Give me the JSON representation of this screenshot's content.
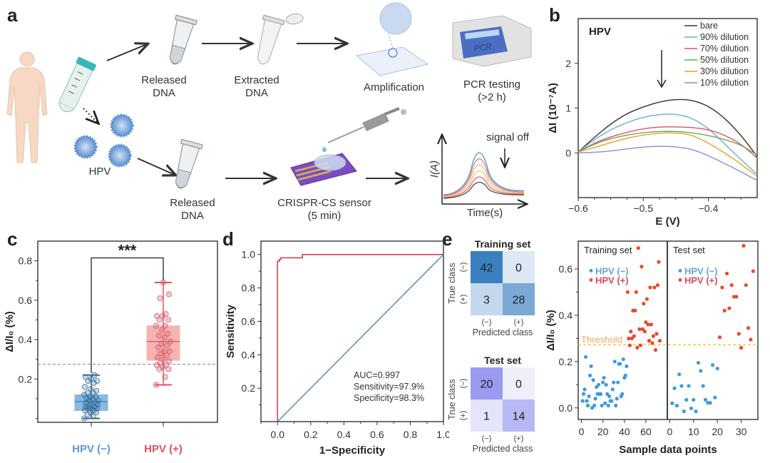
{
  "panels": {
    "a": "a",
    "b": "b",
    "c": "c",
    "d": "d",
    "e": "e"
  },
  "panel_a": {
    "top_path": [
      "Released DNA",
      "Extracted DNA",
      "Amplification",
      "PCR testing (>2 h)"
    ],
    "labels": {
      "released_dna_top_1": "Released",
      "released_dna_top_2": "DNA",
      "extracted_1": "Extracted",
      "extracted_2": "DNA",
      "amplification": "Amplification",
      "pcr_1": "PCR testing",
      "pcr_2": "(>2 h)",
      "pcr_screen": "PCR",
      "hpv": "HPV",
      "released_dna_bot_1": "Released",
      "released_dna_bot_2": "DNA",
      "sensor_1": "CRISPR-CS sensor",
      "sensor_2": "(5 min)",
      "signal_off": "signal off",
      "ia_axis": "I(A)",
      "time_axis": "Time(s)"
    }
  },
  "chart_data": [
    {
      "id": "b",
      "type": "line",
      "title": "HPV",
      "xlabel": "E (V)",
      "ylabel": "ΔI (10⁻⁷A)",
      "xlim": [
        -0.6,
        -0.325
      ],
      "ylim": [
        -1.0,
        3.0
      ],
      "xticks": [
        -0.6,
        -0.5,
        -0.4
      ],
      "xtick_labels": [
        "-0.6",
        "-0.5",
        "-0.4"
      ],
      "yticks": [
        0,
        1,
        2
      ],
      "ytick_labels": [
        "0",
        "1",
        "2"
      ],
      "legend_position": "top-right",
      "x": [
        -0.6,
        -0.575,
        -0.55,
        -0.525,
        -0.5,
        -0.475,
        -0.45,
        -0.425,
        -0.4,
        -0.375,
        -0.35,
        -0.325
      ],
      "series": [
        {
          "name": "bare",
          "color": "#333333",
          "values": [
            0.02,
            0.35,
            0.65,
            0.88,
            1.03,
            1.14,
            1.2,
            1.18,
            1.05,
            0.78,
            0.4,
            -0.08
          ]
        },
        {
          "name": "90% dilution",
          "color": "#6aaedb",
          "values": [
            0.02,
            0.3,
            0.52,
            0.68,
            0.8,
            0.86,
            0.87,
            0.78,
            0.55,
            0.2,
            -0.15,
            -0.48
          ]
        },
        {
          "name": "70% dilution",
          "color": "#e05060",
          "values": [
            0.02,
            0.22,
            0.36,
            0.46,
            0.54,
            0.58,
            0.58,
            0.57,
            0.52,
            0.4,
            0.2,
            -0.12
          ]
        },
        {
          "name": "50% dilution",
          "color": "#6aa84f",
          "values": [
            0.02,
            0.2,
            0.32,
            0.4,
            0.45,
            0.48,
            0.48,
            0.45,
            0.39,
            0.3,
            0.18,
            -0.05
          ]
        },
        {
          "name": "30% dilution",
          "color": "#f0a020",
          "values": [
            0.02,
            0.12,
            0.23,
            0.33,
            0.4,
            0.44,
            0.45,
            0.4,
            0.22,
            0.0,
            -0.25,
            -0.52
          ]
        },
        {
          "name": "10% dilution",
          "color": "#8a8ae0",
          "values": [
            0.0,
            0.01,
            0.04,
            0.09,
            0.13,
            0.15,
            0.14,
            0.08,
            -0.06,
            -0.24,
            -0.42,
            -0.62
          ]
        }
      ],
      "annotations": [
        "downward arrow indicating decreasing signal"
      ]
    },
    {
      "id": "c",
      "type": "box",
      "xlabel": "",
      "ylabel": "ΔI/I₀ (%)",
      "ylim": [
        -0.02,
        0.9
      ],
      "yticks": [
        0.2,
        0.4,
        0.6,
        0.8
      ],
      "ytick_labels": [
        "0.2",
        "0.4",
        "0.6",
        "0.8"
      ],
      "threshold": 0.275,
      "significance": "***",
      "categories": [
        "HPV (−)",
        "HPV (+)"
      ],
      "category_colors": [
        "#5b9bd5",
        "#e05060"
      ],
      "boxes": [
        {
          "name": "HPV (−)",
          "min": 0.0,
          "q1": 0.04,
          "median": 0.085,
          "q3": 0.12,
          "max": 0.22,
          "color": "#5ba3dc"
        },
        {
          "name": "HPV (+)",
          "min": 0.17,
          "q1": 0.295,
          "median": 0.39,
          "q3": 0.47,
          "max": 0.69,
          "color": "#f59a9a"
        }
      ],
      "points": [
        [
          0.0,
          0.01,
          0.02,
          0.03,
          0.03,
          0.04,
          0.04,
          0.05,
          0.05,
          0.05,
          0.06,
          0.06,
          0.06,
          0.07,
          0.07,
          0.08,
          0.08,
          0.09,
          0.09,
          0.1,
          0.1,
          0.11,
          0.11,
          0.12,
          0.13,
          0.13,
          0.14,
          0.15,
          0.16,
          0.18,
          0.19,
          0.19,
          0.2,
          0.21,
          0.22
        ],
        [
          0.17,
          0.21,
          0.25,
          0.25,
          0.26,
          0.27,
          0.27,
          0.28,
          0.29,
          0.3,
          0.31,
          0.32,
          0.33,
          0.34,
          0.34,
          0.36,
          0.37,
          0.38,
          0.39,
          0.41,
          0.42,
          0.43,
          0.45,
          0.47,
          0.47,
          0.5,
          0.5,
          0.52,
          0.52,
          0.53,
          0.61,
          0.63,
          0.69
        ]
      ]
    },
    {
      "id": "d",
      "type": "line",
      "xlabel": "1−Specificity",
      "ylabel": "Sensitivity",
      "xlim": [
        -0.1,
        1.0
      ],
      "ylim": [
        0.0,
        1.08
      ],
      "xticks": [
        0.0,
        0.2,
        0.4,
        0.6,
        0.8,
        1.0
      ],
      "xtick_labels": [
        "0.0",
        "0.2",
        "0.4",
        "0.6",
        "0.8",
        "1.0"
      ],
      "yticks": [
        0.2,
        0.4,
        0.6,
        0.8,
        1.0
      ],
      "ytick_labels": [
        "0.2",
        "0.4",
        "0.6",
        "0.8",
        "1.0"
      ],
      "series": [
        {
          "name": "ROC",
          "color": "#e03040",
          "x": [
            0,
            0,
            0.01,
            0.01,
            0.02,
            0.02,
            0.15,
            0.15,
            1.0
          ],
          "y": [
            0,
            0.96,
            0.96,
            0.97,
            0.97,
            0.98,
            0.98,
            1.0,
            1.0
          ]
        },
        {
          "name": "Reference",
          "color": "#4a90c8",
          "x": [
            0,
            1
          ],
          "y": [
            0,
            1
          ]
        }
      ],
      "annotations": [
        "AUC=0.997",
        "Sensitivity=97.9%",
        "Specificity=98.3%"
      ]
    },
    {
      "id": "e",
      "type": "heatmap",
      "matrices": [
        {
          "title": "Training set",
          "ylabel": "True class",
          "xlabel": "Predicted class",
          "row_labels": [
            "(−)",
            "(+)"
          ],
          "col_labels": [
            "(−)",
            "(+)"
          ],
          "values": [
            [
              42,
              0
            ],
            [
              3,
              28
            ]
          ],
          "colors": [
            [
              "#3a7fc0",
              "#dde8f4"
            ],
            [
              "#c3d8ee",
              "#7aa9d6"
            ]
          ]
        },
        {
          "title": "Test set",
          "ylabel": "True class",
          "xlabel": "Predicted class",
          "row_labels": [
            "(−)",
            "(+)"
          ],
          "col_labels": [
            "(−)",
            "(+)"
          ],
          "values": [
            [
              20,
              0
            ],
            [
              1,
              14
            ]
          ],
          "colors": [
            [
              "#9a9af0",
              "#efeffc"
            ],
            [
              "#e4e4fa",
              "#b8b8f4"
            ]
          ]
        }
      ]
    },
    {
      "id": "f",
      "type": "scatter",
      "ylabel": "ΔI/I₀ (%)",
      "xlabel": "Sample data points",
      "ylim": [
        -0.05,
        0.72
      ],
      "yticks": [
        0.0,
        0.2,
        0.4,
        0.6
      ],
      "ytick_labels": [
        "0.0",
        "0.2",
        "0.4",
        "0.6"
      ],
      "threshold": 0.272,
      "threshold_label": "Threshold",
      "legend": [
        {
          "name": "HPV (−)",
          "color": "#3d9be0"
        },
        {
          "name": "HPV (+)",
          "color": "#e84a2a"
        }
      ],
      "subplots": [
        {
          "title": "Training set",
          "xlim": [
            -3,
            80
          ],
          "xticks": [
            0,
            20,
            40,
            60
          ],
          "xtick_labels": [
            "0",
            "20",
            "40",
            "60"
          ],
          "neg": {
            "x": [
              1,
              2,
              3,
              4,
              5,
              6,
              7,
              8,
              9,
              10,
              11,
              12,
              13,
              14,
              15,
              16,
              17,
              18,
              19,
              20,
              21,
              22,
              23,
              24,
              25,
              26,
              27,
              28,
              29,
              30,
              31,
              32,
              33,
              34,
              35,
              36,
              37,
              38,
              39,
              40,
              41,
              42
            ],
            "y": [
              0.03,
              0.06,
              0.08,
              0.22,
              0.03,
              0.01,
              0.05,
              0.14,
              0.18,
              0.0,
              0.12,
              0.01,
              0.04,
              0.09,
              0.06,
              0.1,
              0.06,
              0.06,
              0.01,
              0.11,
              0.13,
              0.02,
              0.1,
              0.06,
              0.01,
              0.05,
              0.03,
              0.03,
              0.08,
              0.11,
              0.2,
              0.01,
              0.04,
              0.11,
              0.19,
              0.19,
              0.05,
              0.06,
              0.21,
              0.13,
              0.14,
              0.18
            ]
          },
          "pos": {
            "x": [
              43,
              44,
              45,
              46,
              47,
              48,
              49,
              50,
              51,
              52,
              53,
              54,
              55,
              56,
              57,
              58,
              59,
              60,
              61,
              62,
              63,
              64,
              65,
              66,
              67,
              68,
              69,
              70,
              71,
              72,
              73
            ],
            "y": [
              0.5,
              0.3,
              0.27,
              0.33,
              0.3,
              0.42,
              0.31,
              0.42,
              0.5,
              0.26,
              0.69,
              0.34,
              0.27,
              0.61,
              0.34,
              0.45,
              0.33,
              0.37,
              0.47,
              0.36,
              0.29,
              0.52,
              0.36,
              0.28,
              0.31,
              0.52,
              0.25,
              0.32,
              0.53,
              0.63,
              0.29
            ]
          }
        },
        {
          "title": "Test set",
          "xlim": [
            -1,
            37
          ],
          "xticks": [
            0,
            10,
            20,
            30
          ],
          "xtick_labels": [
            "0",
            "10",
            "20",
            "30"
          ],
          "neg": {
            "x": [
              1,
              2,
              3,
              4,
              5,
              6,
              7,
              8,
              9,
              10,
              11,
              12,
              13,
              14,
              15,
              16,
              17,
              18,
              19,
              20
            ],
            "y": [
              0.02,
              0.085,
              0.01,
              0.145,
              0.095,
              -0.015,
              0.035,
              0.095,
              -0.002,
              0.035,
              -0.015,
              0.195,
              0.16,
              0.095,
              0.035,
              0.022,
              0.022,
              0.185,
              0.045,
              0.17
            ]
          },
          "pos": {
            "x": [
              21,
              22,
              23,
              24,
              25,
              26,
              27,
              28,
              29,
              30,
              31,
              32,
              33,
              34,
              35
            ],
            "y": [
              0.305,
              0.52,
              0.42,
              0.58,
              0.43,
              0.53,
              0.48,
              0.48,
              0.32,
              0.26,
              0.7,
              0.53,
              0.345,
              0.295,
              0.59
            ]
          }
        }
      ]
    }
  ]
}
